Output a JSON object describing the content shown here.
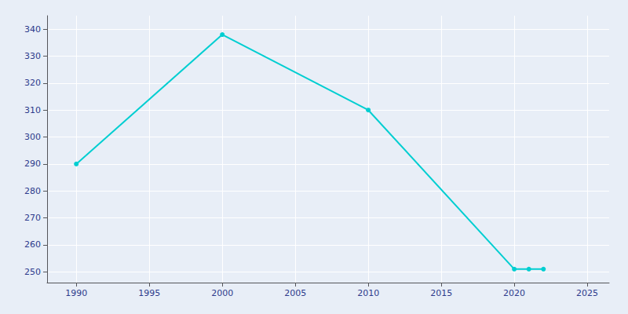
{
  "chart_data": {
    "type": "line",
    "x": [
      1990,
      2000,
      2010,
      2020,
      2021,
      2022
    ],
    "values": [
      290,
      338,
      310,
      251,
      251,
      251
    ],
    "color": "#00CED1",
    "marker": "circle",
    "xlim": [
      1988,
      2026.5
    ],
    "ylim": [
      246,
      345
    ],
    "xticks": [
      1990,
      1995,
      2000,
      2005,
      2010,
      2015,
      2020,
      2025
    ],
    "yticks": [
      250,
      260,
      270,
      280,
      290,
      300,
      310,
      320,
      330,
      340
    ],
    "grid": true
  }
}
